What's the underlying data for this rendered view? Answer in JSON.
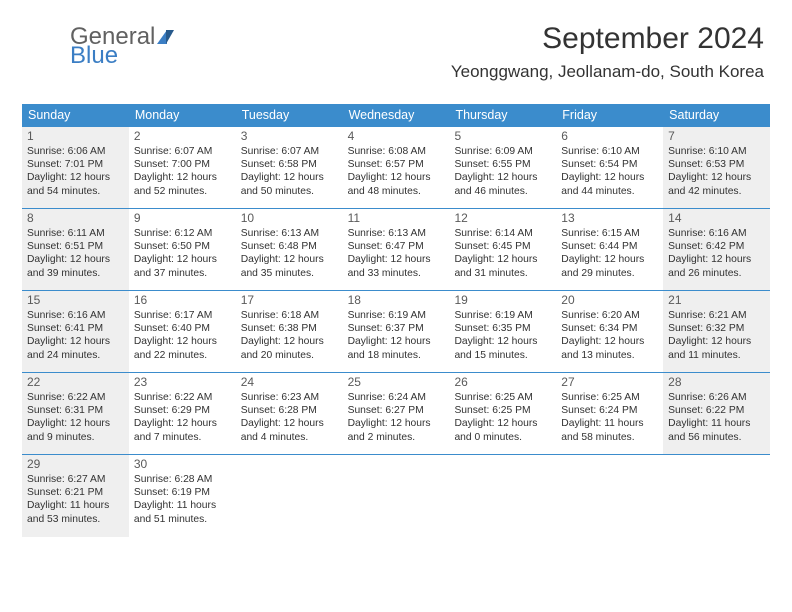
{
  "logo": {
    "word1": "General",
    "word2": "Blue"
  },
  "header": {
    "title": "September 2024",
    "subtitle": "Yeonggwang, Jeollanam-do, South Korea"
  },
  "colors": {
    "header_bar": "#3b8ccc",
    "shaded_cell": "#efefef",
    "logo_grey": "#616161",
    "logo_blue": "#3b7ec4",
    "text": "#333333"
  },
  "weekdays": [
    "Sunday",
    "Monday",
    "Tuesday",
    "Wednesday",
    "Thursday",
    "Friday",
    "Saturday"
  ],
  "weeks": [
    [
      {
        "day": "1",
        "shaded": true,
        "sunrise": "Sunrise: 6:06 AM",
        "sunset": "Sunset: 7:01 PM",
        "d1": "Daylight: 12 hours",
        "d2": "and 54 minutes."
      },
      {
        "day": "2",
        "shaded": false,
        "sunrise": "Sunrise: 6:07 AM",
        "sunset": "Sunset: 7:00 PM",
        "d1": "Daylight: 12 hours",
        "d2": "and 52 minutes."
      },
      {
        "day": "3",
        "shaded": false,
        "sunrise": "Sunrise: 6:07 AM",
        "sunset": "Sunset: 6:58 PM",
        "d1": "Daylight: 12 hours",
        "d2": "and 50 minutes."
      },
      {
        "day": "4",
        "shaded": false,
        "sunrise": "Sunrise: 6:08 AM",
        "sunset": "Sunset: 6:57 PM",
        "d1": "Daylight: 12 hours",
        "d2": "and 48 minutes."
      },
      {
        "day": "5",
        "shaded": false,
        "sunrise": "Sunrise: 6:09 AM",
        "sunset": "Sunset: 6:55 PM",
        "d1": "Daylight: 12 hours",
        "d2": "and 46 minutes."
      },
      {
        "day": "6",
        "shaded": false,
        "sunrise": "Sunrise: 6:10 AM",
        "sunset": "Sunset: 6:54 PM",
        "d1": "Daylight: 12 hours",
        "d2": "and 44 minutes."
      },
      {
        "day": "7",
        "shaded": true,
        "sunrise": "Sunrise: 6:10 AM",
        "sunset": "Sunset: 6:53 PM",
        "d1": "Daylight: 12 hours",
        "d2": "and 42 minutes."
      }
    ],
    [
      {
        "day": "8",
        "shaded": true,
        "sunrise": "Sunrise: 6:11 AM",
        "sunset": "Sunset: 6:51 PM",
        "d1": "Daylight: 12 hours",
        "d2": "and 39 minutes."
      },
      {
        "day": "9",
        "shaded": false,
        "sunrise": "Sunrise: 6:12 AM",
        "sunset": "Sunset: 6:50 PM",
        "d1": "Daylight: 12 hours",
        "d2": "and 37 minutes."
      },
      {
        "day": "10",
        "shaded": false,
        "sunrise": "Sunrise: 6:13 AM",
        "sunset": "Sunset: 6:48 PM",
        "d1": "Daylight: 12 hours",
        "d2": "and 35 minutes."
      },
      {
        "day": "11",
        "shaded": false,
        "sunrise": "Sunrise: 6:13 AM",
        "sunset": "Sunset: 6:47 PM",
        "d1": "Daylight: 12 hours",
        "d2": "and 33 minutes."
      },
      {
        "day": "12",
        "shaded": false,
        "sunrise": "Sunrise: 6:14 AM",
        "sunset": "Sunset: 6:45 PM",
        "d1": "Daylight: 12 hours",
        "d2": "and 31 minutes."
      },
      {
        "day": "13",
        "shaded": false,
        "sunrise": "Sunrise: 6:15 AM",
        "sunset": "Sunset: 6:44 PM",
        "d1": "Daylight: 12 hours",
        "d2": "and 29 minutes."
      },
      {
        "day": "14",
        "shaded": true,
        "sunrise": "Sunrise: 6:16 AM",
        "sunset": "Sunset: 6:42 PM",
        "d1": "Daylight: 12 hours",
        "d2": "and 26 minutes."
      }
    ],
    [
      {
        "day": "15",
        "shaded": true,
        "sunrise": "Sunrise: 6:16 AM",
        "sunset": "Sunset: 6:41 PM",
        "d1": "Daylight: 12 hours",
        "d2": "and 24 minutes."
      },
      {
        "day": "16",
        "shaded": false,
        "sunrise": "Sunrise: 6:17 AM",
        "sunset": "Sunset: 6:40 PM",
        "d1": "Daylight: 12 hours",
        "d2": "and 22 minutes."
      },
      {
        "day": "17",
        "shaded": false,
        "sunrise": "Sunrise: 6:18 AM",
        "sunset": "Sunset: 6:38 PM",
        "d1": "Daylight: 12 hours",
        "d2": "and 20 minutes."
      },
      {
        "day": "18",
        "shaded": false,
        "sunrise": "Sunrise: 6:19 AM",
        "sunset": "Sunset: 6:37 PM",
        "d1": "Daylight: 12 hours",
        "d2": "and 18 minutes."
      },
      {
        "day": "19",
        "shaded": false,
        "sunrise": "Sunrise: 6:19 AM",
        "sunset": "Sunset: 6:35 PM",
        "d1": "Daylight: 12 hours",
        "d2": "and 15 minutes."
      },
      {
        "day": "20",
        "shaded": false,
        "sunrise": "Sunrise: 6:20 AM",
        "sunset": "Sunset: 6:34 PM",
        "d1": "Daylight: 12 hours",
        "d2": "and 13 minutes."
      },
      {
        "day": "21",
        "shaded": true,
        "sunrise": "Sunrise: 6:21 AM",
        "sunset": "Sunset: 6:32 PM",
        "d1": "Daylight: 12 hours",
        "d2": "and 11 minutes."
      }
    ],
    [
      {
        "day": "22",
        "shaded": true,
        "sunrise": "Sunrise: 6:22 AM",
        "sunset": "Sunset: 6:31 PM",
        "d1": "Daylight: 12 hours",
        "d2": "and 9 minutes."
      },
      {
        "day": "23",
        "shaded": false,
        "sunrise": "Sunrise: 6:22 AM",
        "sunset": "Sunset: 6:29 PM",
        "d1": "Daylight: 12 hours",
        "d2": "and 7 minutes."
      },
      {
        "day": "24",
        "shaded": false,
        "sunrise": "Sunrise: 6:23 AM",
        "sunset": "Sunset: 6:28 PM",
        "d1": "Daylight: 12 hours",
        "d2": "and 4 minutes."
      },
      {
        "day": "25",
        "shaded": false,
        "sunrise": "Sunrise: 6:24 AM",
        "sunset": "Sunset: 6:27 PM",
        "d1": "Daylight: 12 hours",
        "d2": "and 2 minutes."
      },
      {
        "day": "26",
        "shaded": false,
        "sunrise": "Sunrise: 6:25 AM",
        "sunset": "Sunset: 6:25 PM",
        "d1": "Daylight: 12 hours",
        "d2": "and 0 minutes."
      },
      {
        "day": "27",
        "shaded": false,
        "sunrise": "Sunrise: 6:25 AM",
        "sunset": "Sunset: 6:24 PM",
        "d1": "Daylight: 11 hours",
        "d2": "and 58 minutes."
      },
      {
        "day": "28",
        "shaded": true,
        "sunrise": "Sunrise: 6:26 AM",
        "sunset": "Sunset: 6:22 PM",
        "d1": "Daylight: 11 hours",
        "d2": "and 56 minutes."
      }
    ],
    [
      {
        "day": "29",
        "shaded": true,
        "sunrise": "Sunrise: 6:27 AM",
        "sunset": "Sunset: 6:21 PM",
        "d1": "Daylight: 11 hours",
        "d2": "and 53 minutes."
      },
      {
        "day": "30",
        "shaded": false,
        "sunrise": "Sunrise: 6:28 AM",
        "sunset": "Sunset: 6:19 PM",
        "d1": "Daylight: 11 hours",
        "d2": "and 51 minutes."
      },
      {
        "empty": true
      },
      {
        "empty": true
      },
      {
        "empty": true
      },
      {
        "empty": true
      },
      {
        "empty": true
      }
    ]
  ]
}
